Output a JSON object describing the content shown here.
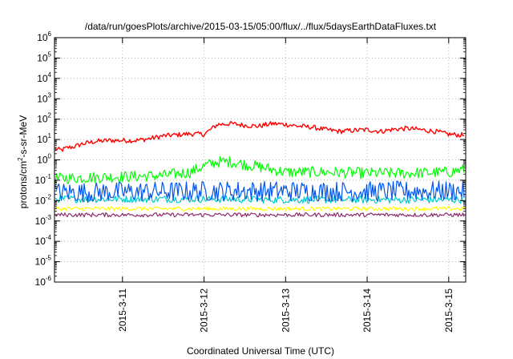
{
  "chart_data": {
    "type": "line",
    "title": "/data/run/goesPlots/archive/2015-03-15/05:00/flux/../flux/5daysEarthDataFluxes.txt",
    "xlabel": "Coordinated Universal Time (UTC)",
    "ylabel": {
      "base": "protons/cm",
      "sup": "2",
      "rest": "-s-sr-MeV"
    },
    "x_type": "date",
    "xlim": [
      "2015-03-10T04:00",
      "2015-03-15T05:00"
    ],
    "x_ticks": [
      {
        "label": "2015-3-11",
        "value": "2015-03-11"
      },
      {
        "label": "2015-3-12",
        "value": "2015-03-12"
      },
      {
        "label": "2015-3-13",
        "value": "2015-03-13"
      },
      {
        "label": "2015-3-14",
        "value": "2015-03-14"
      },
      {
        "label": "2015-3-15",
        "value": "2015-03-15"
      }
    ],
    "y_scale": "log",
    "ylim": [
      1e-06,
      1000000.0
    ],
    "y_ticks": [
      {
        "base": "10",
        "exp": "-6",
        "value": 1e-06
      },
      {
        "base": "10",
        "exp": "-5",
        "value": 1e-05
      },
      {
        "base": "10",
        "exp": "-4",
        "value": 0.0001
      },
      {
        "base": "10",
        "exp": "-3",
        "value": 0.001
      },
      {
        "base": "10",
        "exp": "-2",
        "value": 0.01
      },
      {
        "base": "10",
        "exp": "-1",
        "value": 0.1
      },
      {
        "base": "10",
        "exp": "0",
        "value": 1
      },
      {
        "base": "10",
        "exp": "1",
        "value": 10
      },
      {
        "base": "10",
        "exp": "2",
        "value": 100
      },
      {
        "base": "10",
        "exp": "3",
        "value": 1000
      },
      {
        "base": "10",
        "exp": "4",
        "value": 10000
      },
      {
        "base": "10",
        "exp": "5",
        "value": 100000
      },
      {
        "base": "10",
        "exp": "6",
        "value": 1000000
      }
    ],
    "grid": true,
    "legend": "none",
    "series": [
      {
        "color": "#ff0000",
        "x": [
          "2015-03-10T04:00",
          "2015-03-10T06:00",
          "2015-03-10T08:00",
          "2015-03-10T10:00",
          "2015-03-10T12:00",
          "2015-03-10T16:00",
          "2015-03-10T20:00",
          "2015-03-11T00:00",
          "2015-03-11T04:00",
          "2015-03-11T08:00",
          "2015-03-11T12:00",
          "2015-03-11T16:00",
          "2015-03-11T20:00",
          "2015-03-12T00:00",
          "2015-03-12T04:00",
          "2015-03-12T08:00",
          "2015-03-12T12:00",
          "2015-03-12T16:00",
          "2015-03-12T20:00",
          "2015-03-13T00:00",
          "2015-03-13T04:00",
          "2015-03-13T08:00",
          "2015-03-13T12:00",
          "2015-03-13T16:00",
          "2015-03-13T20:00",
          "2015-03-14T00:00",
          "2015-03-14T04:00",
          "2015-03-14T08:00",
          "2015-03-14T12:00",
          "2015-03-14T16:00",
          "2015-03-14T20:00",
          "2015-03-15T00:00",
          "2015-03-15T05:00"
        ],
        "y": [
          3.5,
          3.0,
          4.0,
          4.5,
          6,
          8,
          9,
          9,
          9,
          11,
          15,
          17,
          19,
          18,
          55,
          60,
          50,
          45,
          60,
          55,
          45,
          40,
          30,
          25,
          28,
          30,
          25,
          32,
          35,
          30,
          25,
          18,
          16
        ],
        "noise": 0.12
      },
      {
        "color": "#00ff00",
        "x": [
          "2015-03-10T04:00",
          "2015-03-10T16:00",
          "2015-03-11T00:00",
          "2015-03-11T12:00",
          "2015-03-11T20:00",
          "2015-03-12T00:00",
          "2015-03-12T04:00",
          "2015-03-12T08:00",
          "2015-03-12T12:00",
          "2015-03-12T18:00",
          "2015-03-13T00:00",
          "2015-03-13T12:00",
          "2015-03-14T00:00",
          "2015-03-14T12:00",
          "2015-03-15T00:00",
          "2015-03-15T05:00"
        ],
        "y": [
          0.12,
          0.14,
          0.15,
          0.17,
          0.25,
          0.5,
          0.8,
          0.8,
          0.6,
          0.4,
          0.25,
          0.25,
          0.22,
          0.22,
          0.25,
          0.35
        ],
        "noise": 0.28
      },
      {
        "color": "#00cccc",
        "x": [
          "2015-03-10T04:00",
          "2015-03-12T00:00",
          "2015-03-13T00:00",
          "2015-03-15T05:00"
        ],
        "y": [
          0.012,
          0.012,
          0.011,
          0.011
        ],
        "noise": 0.18
      },
      {
        "color": "#0055ee",
        "x": [
          "2015-03-10T04:00",
          "2015-03-11T12:00",
          "2015-03-12T12:00",
          "2015-03-14T00:00",
          "2015-03-15T05:00"
        ],
        "y": [
          0.025,
          0.028,
          0.03,
          0.028,
          0.03
        ],
        "noise": 0.5
      },
      {
        "color": "#ffff00",
        "x": [
          "2015-03-10T04:00",
          "2015-03-13T00:00",
          "2015-03-15T05:00"
        ],
        "y": [
          0.004,
          0.004,
          0.004
        ],
        "noise": 0.1
      },
      {
        "color": "#8b2a6e",
        "x": [
          "2015-03-10T04:00",
          "2015-03-13T00:00",
          "2015-03-15T05:00"
        ],
        "y": [
          0.002,
          0.002,
          0.002
        ],
        "noise": 0.1
      }
    ]
  }
}
